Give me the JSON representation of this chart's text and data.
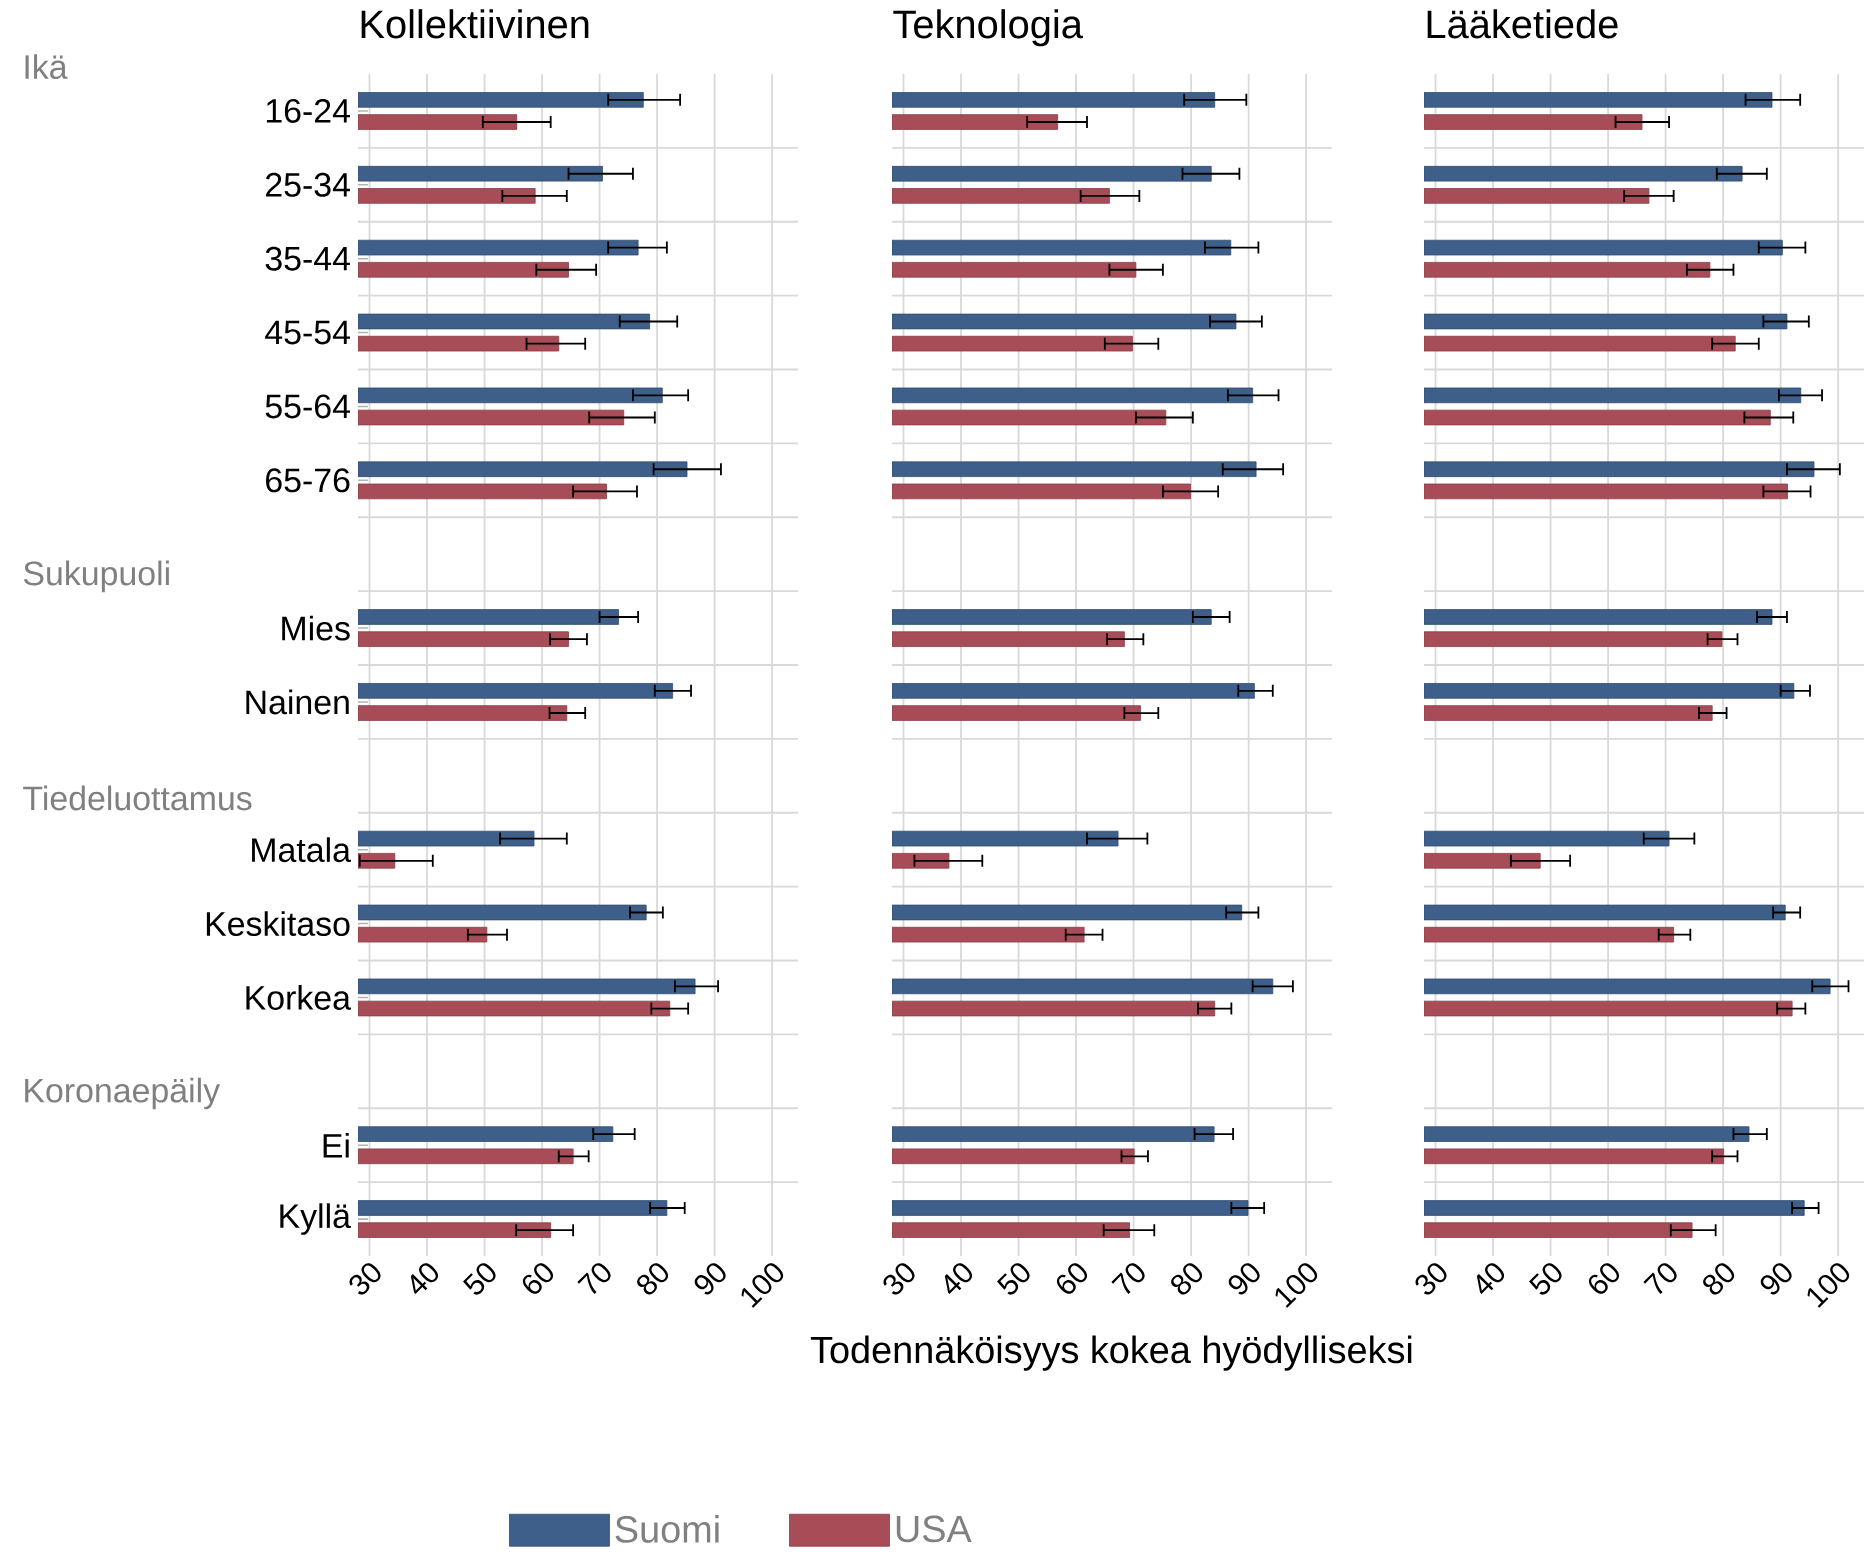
{
  "chart_data": [
    {
      "type": "bar",
      "orientation": "horizontal",
      "title": "Kollektiivinen",
      "grid": true,
      "xlim": [
        28,
        104.5
      ],
      "xticks": [
        30,
        40,
        50,
        60,
        70,
        80,
        90,
        100
      ],
      "annotations": [
        "Ikä",
        "Sukupuoli",
        "Tiedeluottamus",
        "Koronaepäily"
      ],
      "categories": [
        "16-24",
        "25-34",
        "35-44",
        "45-54",
        "55-64",
        "65-76",
        null,
        "Mies",
        "Nainen",
        null,
        "Matala",
        "Keskitaso",
        "Korkea",
        null,
        "Ei",
        "Kyllä"
      ],
      "series": [
        {
          "color": "#3e5f8a",
          "values": [
            77.6,
            70.5,
            76.7,
            78.7,
            80.9,
            85.2,
            null,
            73.3,
            82.7,
            null,
            58.6,
            78.1,
            86.6,
            null,
            72.3,
            81.7
          ],
          "errors": [
            [
              71.5,
              84.0
            ],
            [
              64.6,
              75.8
            ],
            [
              71.5,
              81.7
            ],
            [
              73.5,
              83.5
            ],
            [
              75.8,
              85.4
            ],
            [
              79.4,
              91.1
            ],
            null,
            [
              70.0,
              76.7
            ],
            [
              79.6,
              85.9
            ],
            null,
            [
              52.7,
              64.3
            ],
            [
              75.3,
              81.0
            ],
            [
              83.1,
              90.6
            ],
            null,
            [
              68.9,
              76.1
            ],
            [
              78.8,
              84.8
            ]
          ]
        },
        {
          "color": "#a84d57",
          "values": [
            55.6,
            58.8,
            64.6,
            62.9,
            74.2,
            71.2,
            null,
            64.6,
            64.3,
            null,
            34.4,
            50.4,
            82.2,
            null,
            65.4,
            61.5
          ],
          "errors": [
            [
              49.7,
              61.5
            ],
            [
              53.1,
              64.3
            ],
            [
              59.0,
              69.4
            ],
            [
              57.3,
              67.5
            ],
            [
              68.2,
              79.6
            ],
            [
              65.4,
              76.5
            ],
            null,
            [
              61.4,
              67.8
            ],
            [
              61.3,
              67.5
            ],
            null,
            [
              28.3,
              41.0
            ],
            [
              47.1,
              53.9
            ],
            [
              79.0,
              85.4
            ],
            null,
            [
              62.9,
              68.1
            ],
            [
              55.5,
              65.4
            ]
          ]
        }
      ]
    },
    {
      "type": "bar",
      "orientation": "horizontal",
      "title": "Teknologia",
      "xlabel": "Todennäköisyys kokea hyödylliseksi",
      "grid": true,
      "legend": "bottom",
      "tick_labels": "x",
      "xlim": [
        28,
        104.5
      ],
      "xticks": [
        30,
        40,
        50,
        60,
        70,
        80,
        90,
        100
      ],
      "series": [
        {
          "name": "Suomi",
          "color": "#3e5f8a",
          "values": [
            84.1,
            83.5,
            86.9,
            87.8,
            90.7,
            91.3,
            null,
            83.5,
            91.0,
            null,
            67.3,
            88.8,
            94.2,
            null,
            84.0,
            89.9
          ],
          "errors": [
            [
              78.8,
              89.6
            ],
            [
              78.5,
              88.4
            ],
            [
              82.4,
              91.7
            ],
            [
              83.3,
              92.3
            ],
            [
              86.4,
              95.2
            ],
            [
              85.5,
              96.0
            ],
            null,
            [
              80.3,
              86.7
            ],
            [
              88.2,
              94.2
            ],
            null,
            [
              61.9,
              72.4
            ],
            [
              86.1,
              91.7
            ],
            [
              90.7,
              97.7
            ],
            null,
            [
              80.6,
              87.3
            ],
            [
              87.0,
              92.7
            ]
          ]
        },
        {
          "name": "USA",
          "color": "#a84d57",
          "values": [
            56.8,
            65.8,
            70.4,
            69.8,
            75.6,
            79.9,
            null,
            68.4,
            71.2,
            null,
            37.9,
            61.4,
            84.1,
            null,
            70.1,
            69.3
          ],
          "errors": [
            [
              51.5,
              61.9
            ],
            [
              60.8,
              71.0
            ],
            [
              65.8,
              75.1
            ],
            [
              65.0,
              74.3
            ],
            [
              70.4,
              80.3
            ],
            [
              75.1,
              84.7
            ],
            null,
            [
              65.4,
              71.7
            ],
            [
              68.4,
              74.3
            ],
            null,
            [
              31.9,
              43.7
            ],
            [
              58.2,
              64.6
            ],
            [
              81.2,
              87.0
            ],
            null,
            [
              67.9,
              72.5
            ],
            [
              64.8,
              73.6
            ]
          ]
        }
      ]
    },
    {
      "type": "bar",
      "orientation": "horizontal",
      "title": "Lääketiede",
      "grid": true,
      "tick_labels": "x",
      "xlim": [
        28,
        104.5
      ],
      "xticks": [
        30,
        40,
        50,
        60,
        70,
        80,
        90,
        100
      ],
      "series": [
        {
          "color": "#3e5f8a",
          "values": [
            88.5,
            83.3,
            90.3,
            91.1,
            93.5,
            95.8,
            null,
            88.5,
            92.3,
            null,
            70.6,
            90.8,
            98.6,
            null,
            84.5,
            94.1
          ],
          "errors": [
            [
              83.9,
              93.4
            ],
            [
              78.9,
              87.6
            ],
            [
              86.2,
              94.3
            ],
            [
              87.0,
              94.9
            ],
            [
              89.7,
              97.2
            ],
            [
              91.1,
              100.3
            ],
            null,
            [
              85.9,
              91.1
            ],
            [
              90.0,
              95.1
            ],
            null,
            [
              66.2,
              75.0
            ],
            [
              88.7,
              93.4
            ],
            [
              95.5,
              101.8
            ],
            null,
            [
              81.8,
              87.6
            ],
            [
              92.0,
              96.6
            ]
          ]
        },
        {
          "color": "#a84d57",
          "values": [
            65.9,
            67.1,
            77.7,
            82.1,
            88.2,
            91.2,
            null,
            79.8,
            78.1,
            null,
            48.2,
            71.4,
            92.0,
            null,
            80.1,
            74.6
          ],
          "errors": [
            [
              61.3,
              70.6
            ],
            [
              62.8,
              71.4
            ],
            [
              73.7,
              81.8
            ],
            [
              78.1,
              86.2
            ],
            [
              83.7,
              92.2
            ],
            [
              87.0,
              95.2
            ],
            null,
            [
              77.3,
              82.5
            ],
            [
              75.8,
              80.6
            ],
            null,
            [
              43.1,
              53.4
            ],
            [
              68.8,
              74.3
            ],
            [
              89.4,
              94.3
            ],
            null,
            [
              78.1,
              82.5
            ],
            [
              70.9,
              78.7
            ]
          ]
        }
      ]
    }
  ]
}
